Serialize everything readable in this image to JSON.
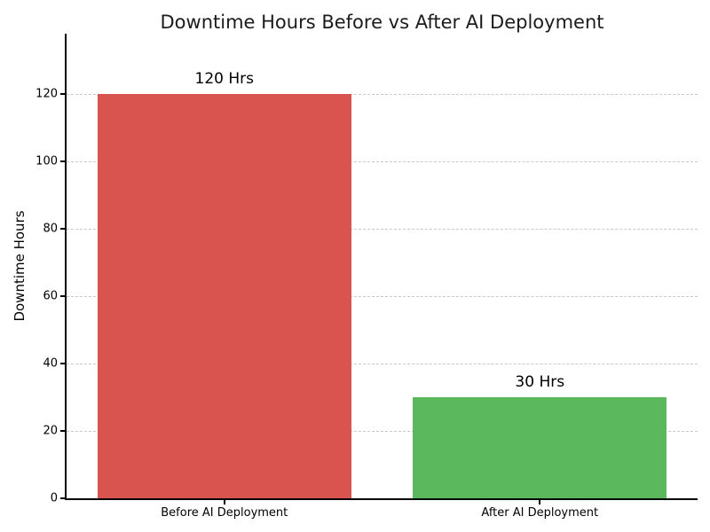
{
  "figure": {
    "background": "#ffffff"
  },
  "chart_data": {
    "type": "bar",
    "title": "Downtime Hours Before vs After AI Deployment",
    "xlabel": "",
    "ylabel": "Downtime Hours",
    "categories": [
      "Before AI Deployment",
      "After AI Deployment"
    ],
    "values": [
      120,
      30
    ],
    "bar_labels": [
      "120 Hrs",
      "30 Hrs"
    ],
    "bar_colors": [
      "#d9534f",
      "#5cb85c"
    ],
    "yticks": [
      0,
      20,
      40,
      60,
      80,
      100,
      120
    ],
    "ylim": [
      0,
      138
    ],
    "grid": "horizontal-dashed",
    "gridline_color": "#c9c9c9",
    "spine_color": "#000000",
    "legend": "none"
  }
}
